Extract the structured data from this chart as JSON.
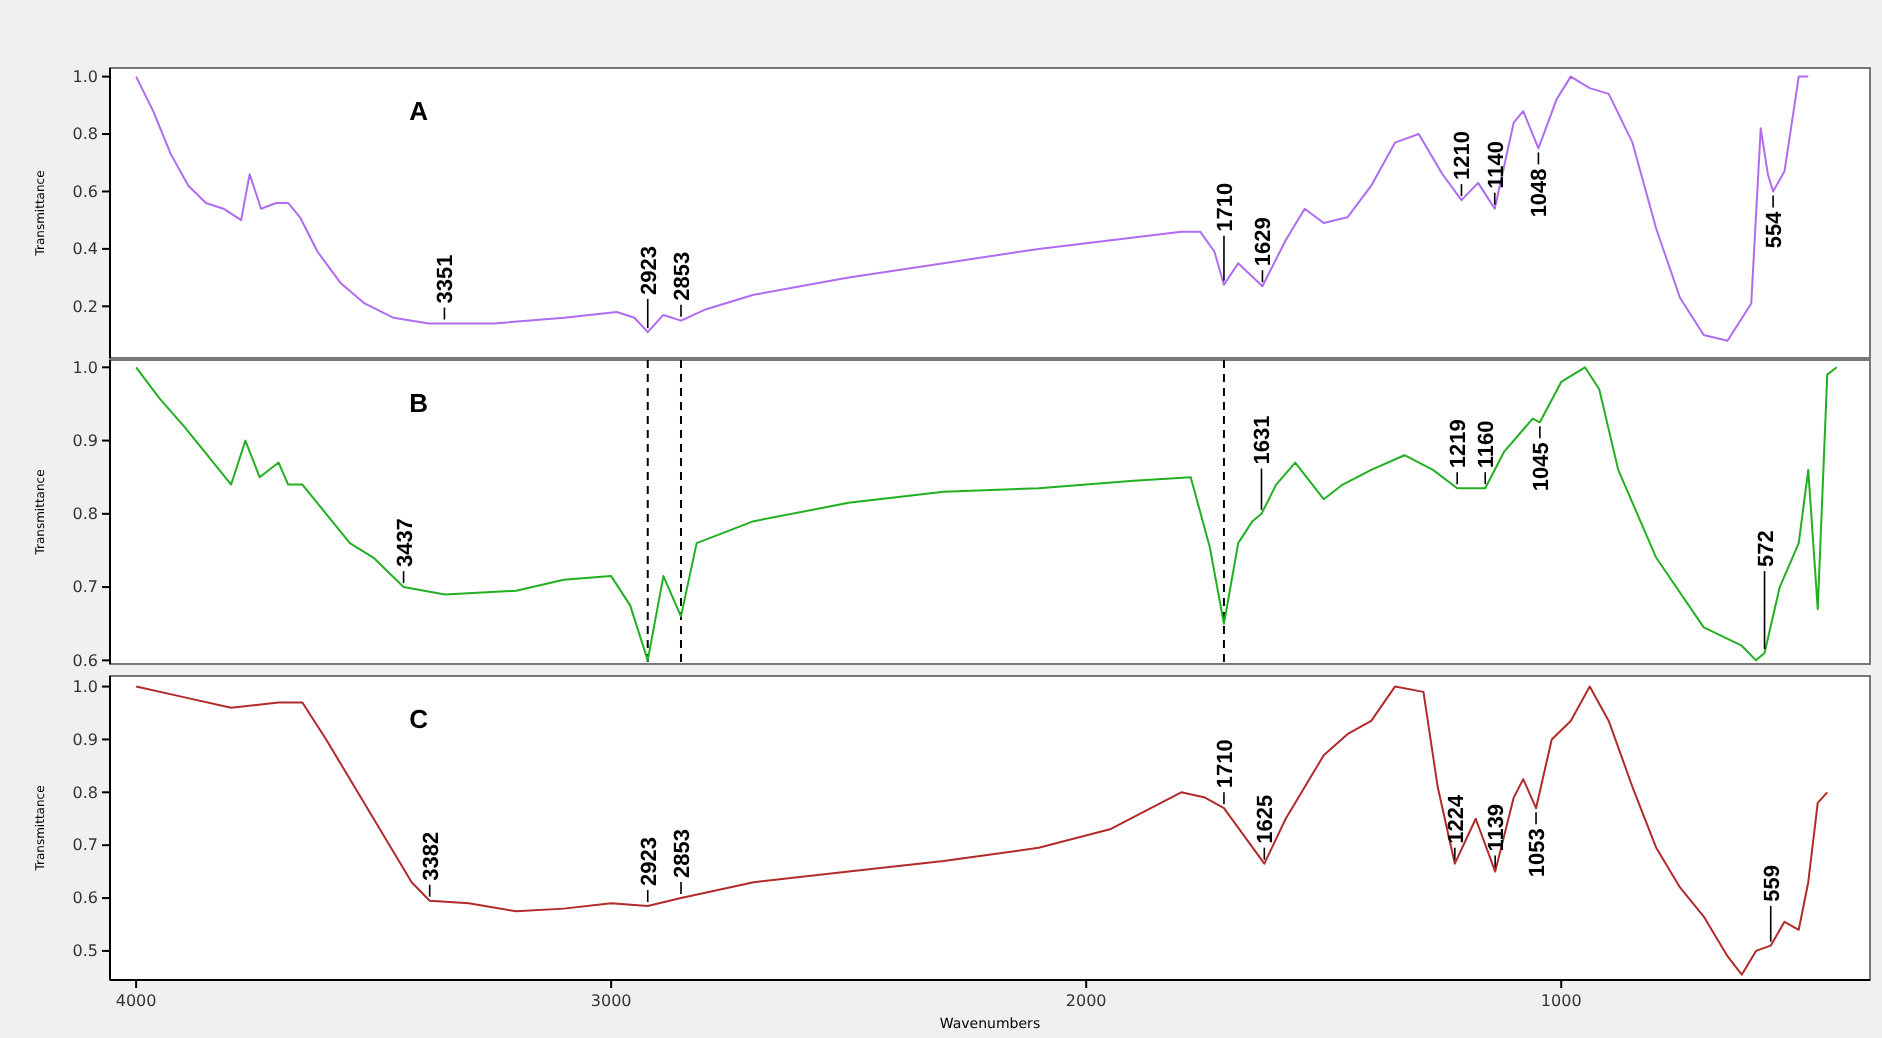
{
  "chart_data": [
    {
      "type": "line",
      "ylabel": "Transmittance",
      "xlim": [
        4055,
        350
      ],
      "ylim": [
        0.02,
        1.03
      ],
      "yticks": [
        {
          "value": 0.2,
          "label": "0.2"
        },
        {
          "value": 0.4,
          "label": "0.4"
        },
        {
          "value": 0.6,
          "label": "0.6"
        },
        {
          "value": 0.8,
          "label": "0.8"
        },
        {
          "value": 1,
          "label": "1.0"
        }
      ],
      "tick_labels": "y",
      "grid": false,
      "x": [
        4000,
        3964,
        3927,
        3890,
        3853,
        3816,
        3779,
        3761,
        3737,
        3705,
        3680,
        3655,
        3618,
        3569,
        3519,
        3458,
        3384,
        3351,
        3248,
        3099,
        2988,
        2951,
        2923,
        2890,
        2853,
        2800,
        2700,
        2500,
        2300,
        2100,
        1900,
        1800,
        1760,
        1730,
        1710,
        1680,
        1629,
        1580,
        1540,
        1500,
        1450,
        1400,
        1350,
        1300,
        1250,
        1210,
        1175,
        1140,
        1100,
        1080,
        1048,
        1010,
        980,
        940,
        900,
        850,
        800,
        750,
        700,
        650,
        600,
        580,
        565,
        554,
        530,
        500,
        480
      ],
      "series": [
        {
          "color": "#b06cf0",
          "values": [
            1.0,
            0.88,
            0.73,
            0.62,
            0.56,
            0.54,
            0.5,
            0.66,
            0.54,
            0.56,
            0.56,
            0.51,
            0.39,
            0.28,
            0.21,
            0.16,
            0.14,
            0.14,
            0.14,
            0.16,
            0.18,
            0.16,
            0.11,
            0.17,
            0.15,
            0.19,
            0.24,
            0.3,
            0.35,
            0.4,
            0.44,
            0.46,
            0.46,
            0.39,
            0.275,
            0.35,
            0.27,
            0.43,
            0.54,
            0.49,
            0.51,
            0.62,
            0.77,
            0.8,
            0.66,
            0.57,
            0.63,
            0.54,
            0.84,
            0.88,
            0.75,
            0.92,
            1.0,
            0.96,
            0.94,
            0.77,
            0.47,
            0.23,
            0.1,
            0.08,
            0.21,
            0.82,
            0.66,
            0.6,
            0.67,
            1.0,
            1.0
          ]
        }
      ],
      "annotations": [
        "A",
        {
          "text": "3351",
          "x": 3351,
          "y": 0.14
        },
        {
          "text": "2923",
          "x": 2923,
          "y": 0.11
        },
        {
          "text": "2853",
          "x": 2853,
          "y": 0.15
        },
        {
          "text": "1710",
          "x": 1710,
          "y": 0.275
        },
        {
          "text": "1629",
          "x": 1629,
          "y": 0.27
        },
        {
          "text": "1210",
          "x": 1210,
          "y": 0.57
        },
        {
          "text": "1140",
          "x": 1140,
          "y": 0.54
        },
        {
          "text": "1048",
          "x": 1048,
          "y": 0.75
        },
        {
          "text": "554",
          "x": 554,
          "y": 0.6
        }
      ]
    },
    {
      "type": "line",
      "ylabel": "Transmittance",
      "xlim": [
        4055,
        350
      ],
      "ylim": [
        0.595,
        1.01
      ],
      "yticks": [
        {
          "value": 0.6,
          "label": "0.6"
        },
        {
          "value": 0.7,
          "label": "0.7"
        },
        {
          "value": 0.8,
          "label": "0.8"
        },
        {
          "value": 0.9,
          "label": "0.9"
        },
        {
          "value": 1,
          "label": "1.0"
        }
      ],
      "tick_labels": "y",
      "grid": false,
      "x": [
        4000,
        3950,
        3900,
        3850,
        3800,
        3770,
        3740,
        3700,
        3680,
        3650,
        3600,
        3550,
        3500,
        3437,
        3350,
        3200,
        3100,
        3000,
        2960,
        2923,
        2890,
        2853,
        2820,
        2700,
        2500,
        2300,
        2100,
        1900,
        1780,
        1740,
        1710,
        1680,
        1650,
        1631,
        1600,
        1560,
        1530,
        1500,
        1460,
        1400,
        1330,
        1270,
        1219,
        1160,
        1120,
        1060,
        1045,
        1000,
        950,
        920,
        880,
        800,
        700,
        620,
        590,
        572,
        540,
        500,
        480,
        460,
        440,
        420
      ],
      "series": [
        {
          "color": "#22b022",
          "values": [
            1.0,
            0.957,
            0.92,
            0.88,
            0.84,
            0.9,
            0.85,
            0.87,
            0.84,
            0.84,
            0.8,
            0.76,
            0.74,
            0.7,
            0.69,
            0.695,
            0.71,
            0.715,
            0.675,
            0.6,
            0.715,
            0.66,
            0.76,
            0.79,
            0.815,
            0.83,
            0.835,
            0.845,
            0.85,
            0.755,
            0.65,
            0.76,
            0.79,
            0.8,
            0.84,
            0.87,
            0.845,
            0.82,
            0.84,
            0.86,
            0.88,
            0.86,
            0.835,
            0.835,
            0.885,
            0.93,
            0.925,
            0.98,
            1.0,
            0.97,
            0.86,
            0.74,
            0.645,
            0.62,
            0.6,
            0.61,
            0.7,
            0.76,
            0.86,
            0.67,
            0.99,
            1.0
          ]
        }
      ],
      "ref_lines": [
        {
          "axis": "x",
          "value": 2923,
          "color": "#000000",
          "line_style": "dashed"
        },
        {
          "axis": "x",
          "value": 2853,
          "color": "#000000",
          "line_style": "dashed"
        },
        {
          "axis": "x",
          "value": 1710,
          "color": "#000000",
          "line_style": "dashed"
        }
      ],
      "annotations": [
        "B",
        {
          "text": "3437",
          "x": 3437,
          "y": 0.7
        },
        {
          "text": "1631",
          "x": 1631,
          "y": 0.8
        },
        {
          "text": "1219",
          "x": 1219,
          "y": 0.835
        },
        {
          "text": "1160",
          "x": 1160,
          "y": 0.835
        },
        {
          "text": "1045",
          "x": 1045,
          "y": 0.925
        },
        {
          "text": "572",
          "x": 572,
          "y": 0.61
        }
      ]
    },
    {
      "type": "line",
      "xlabel": "Wavenumbers",
      "ylabel": "Transmittance",
      "xlim": [
        4055,
        350
      ],
      "ylim": [
        0.445,
        1.02
      ],
      "xticks": [
        4000,
        3000,
        2000,
        1000
      ],
      "yticks": [
        {
          "value": 0.5,
          "label": "0.5"
        },
        {
          "value": 0.6,
          "label": "0.6"
        },
        {
          "value": 0.7,
          "label": "0.7"
        },
        {
          "value": 0.8,
          "label": "0.8"
        },
        {
          "value": 0.9,
          "label": "0.9"
        },
        {
          "value": 1,
          "label": "1.0"
        }
      ],
      "grid": false,
      "x": [
        4000,
        3900,
        3800,
        3700,
        3650,
        3600,
        3500,
        3420,
        3382,
        3300,
        3200,
        3100,
        3000,
        2923,
        2853,
        2700,
        2500,
        2300,
        2100,
        1950,
        1800,
        1750,
        1710,
        1625,
        1580,
        1500,
        1450,
        1400,
        1350,
        1290,
        1260,
        1224,
        1180,
        1139,
        1100,
        1080,
        1053,
        1020,
        980,
        940,
        900,
        850,
        800,
        750,
        700,
        650,
        620,
        590,
        559,
        530,
        500,
        480,
        460,
        440
      ],
      "series": [
        {
          "color": "#b22a2a",
          "values": [
            1.0,
            0.98,
            0.96,
            0.97,
            0.97,
            0.9,
            0.75,
            0.63,
            0.595,
            0.59,
            0.575,
            0.58,
            0.59,
            0.585,
            0.6,
            0.63,
            0.65,
            0.67,
            0.695,
            0.73,
            0.8,
            0.79,
            0.77,
            0.665,
            0.75,
            0.87,
            0.91,
            0.935,
            1.0,
            0.99,
            0.81,
            0.665,
            0.75,
            0.65,
            0.79,
            0.825,
            0.77,
            0.9,
            0.935,
            1.0,
            0.935,
            0.81,
            0.695,
            0.62,
            0.565,
            0.49,
            0.455,
            0.5,
            0.51,
            0.555,
            0.54,
            0.63,
            0.78,
            0.8
          ]
        }
      ],
      "annotations": [
        "C",
        {
          "text": "3382",
          "x": 3382,
          "y": 0.595
        },
        {
          "text": "2923",
          "x": 2923,
          "y": 0.585
        },
        {
          "text": "2853",
          "x": 2853,
          "y": 0.6
        },
        {
          "text": "1710",
          "x": 1710,
          "y": 0.77
        },
        {
          "text": "1625",
          "x": 1625,
          "y": 0.665
        },
        {
          "text": "1224",
          "x": 1224,
          "y": 0.665
        },
        {
          "text": "1139",
          "x": 1139,
          "y": 0.65
        },
        {
          "text": "1053",
          "x": 1053,
          "y": 0.77
        },
        {
          "text": "559",
          "x": 559,
          "y": 0.51
        }
      ]
    }
  ]
}
